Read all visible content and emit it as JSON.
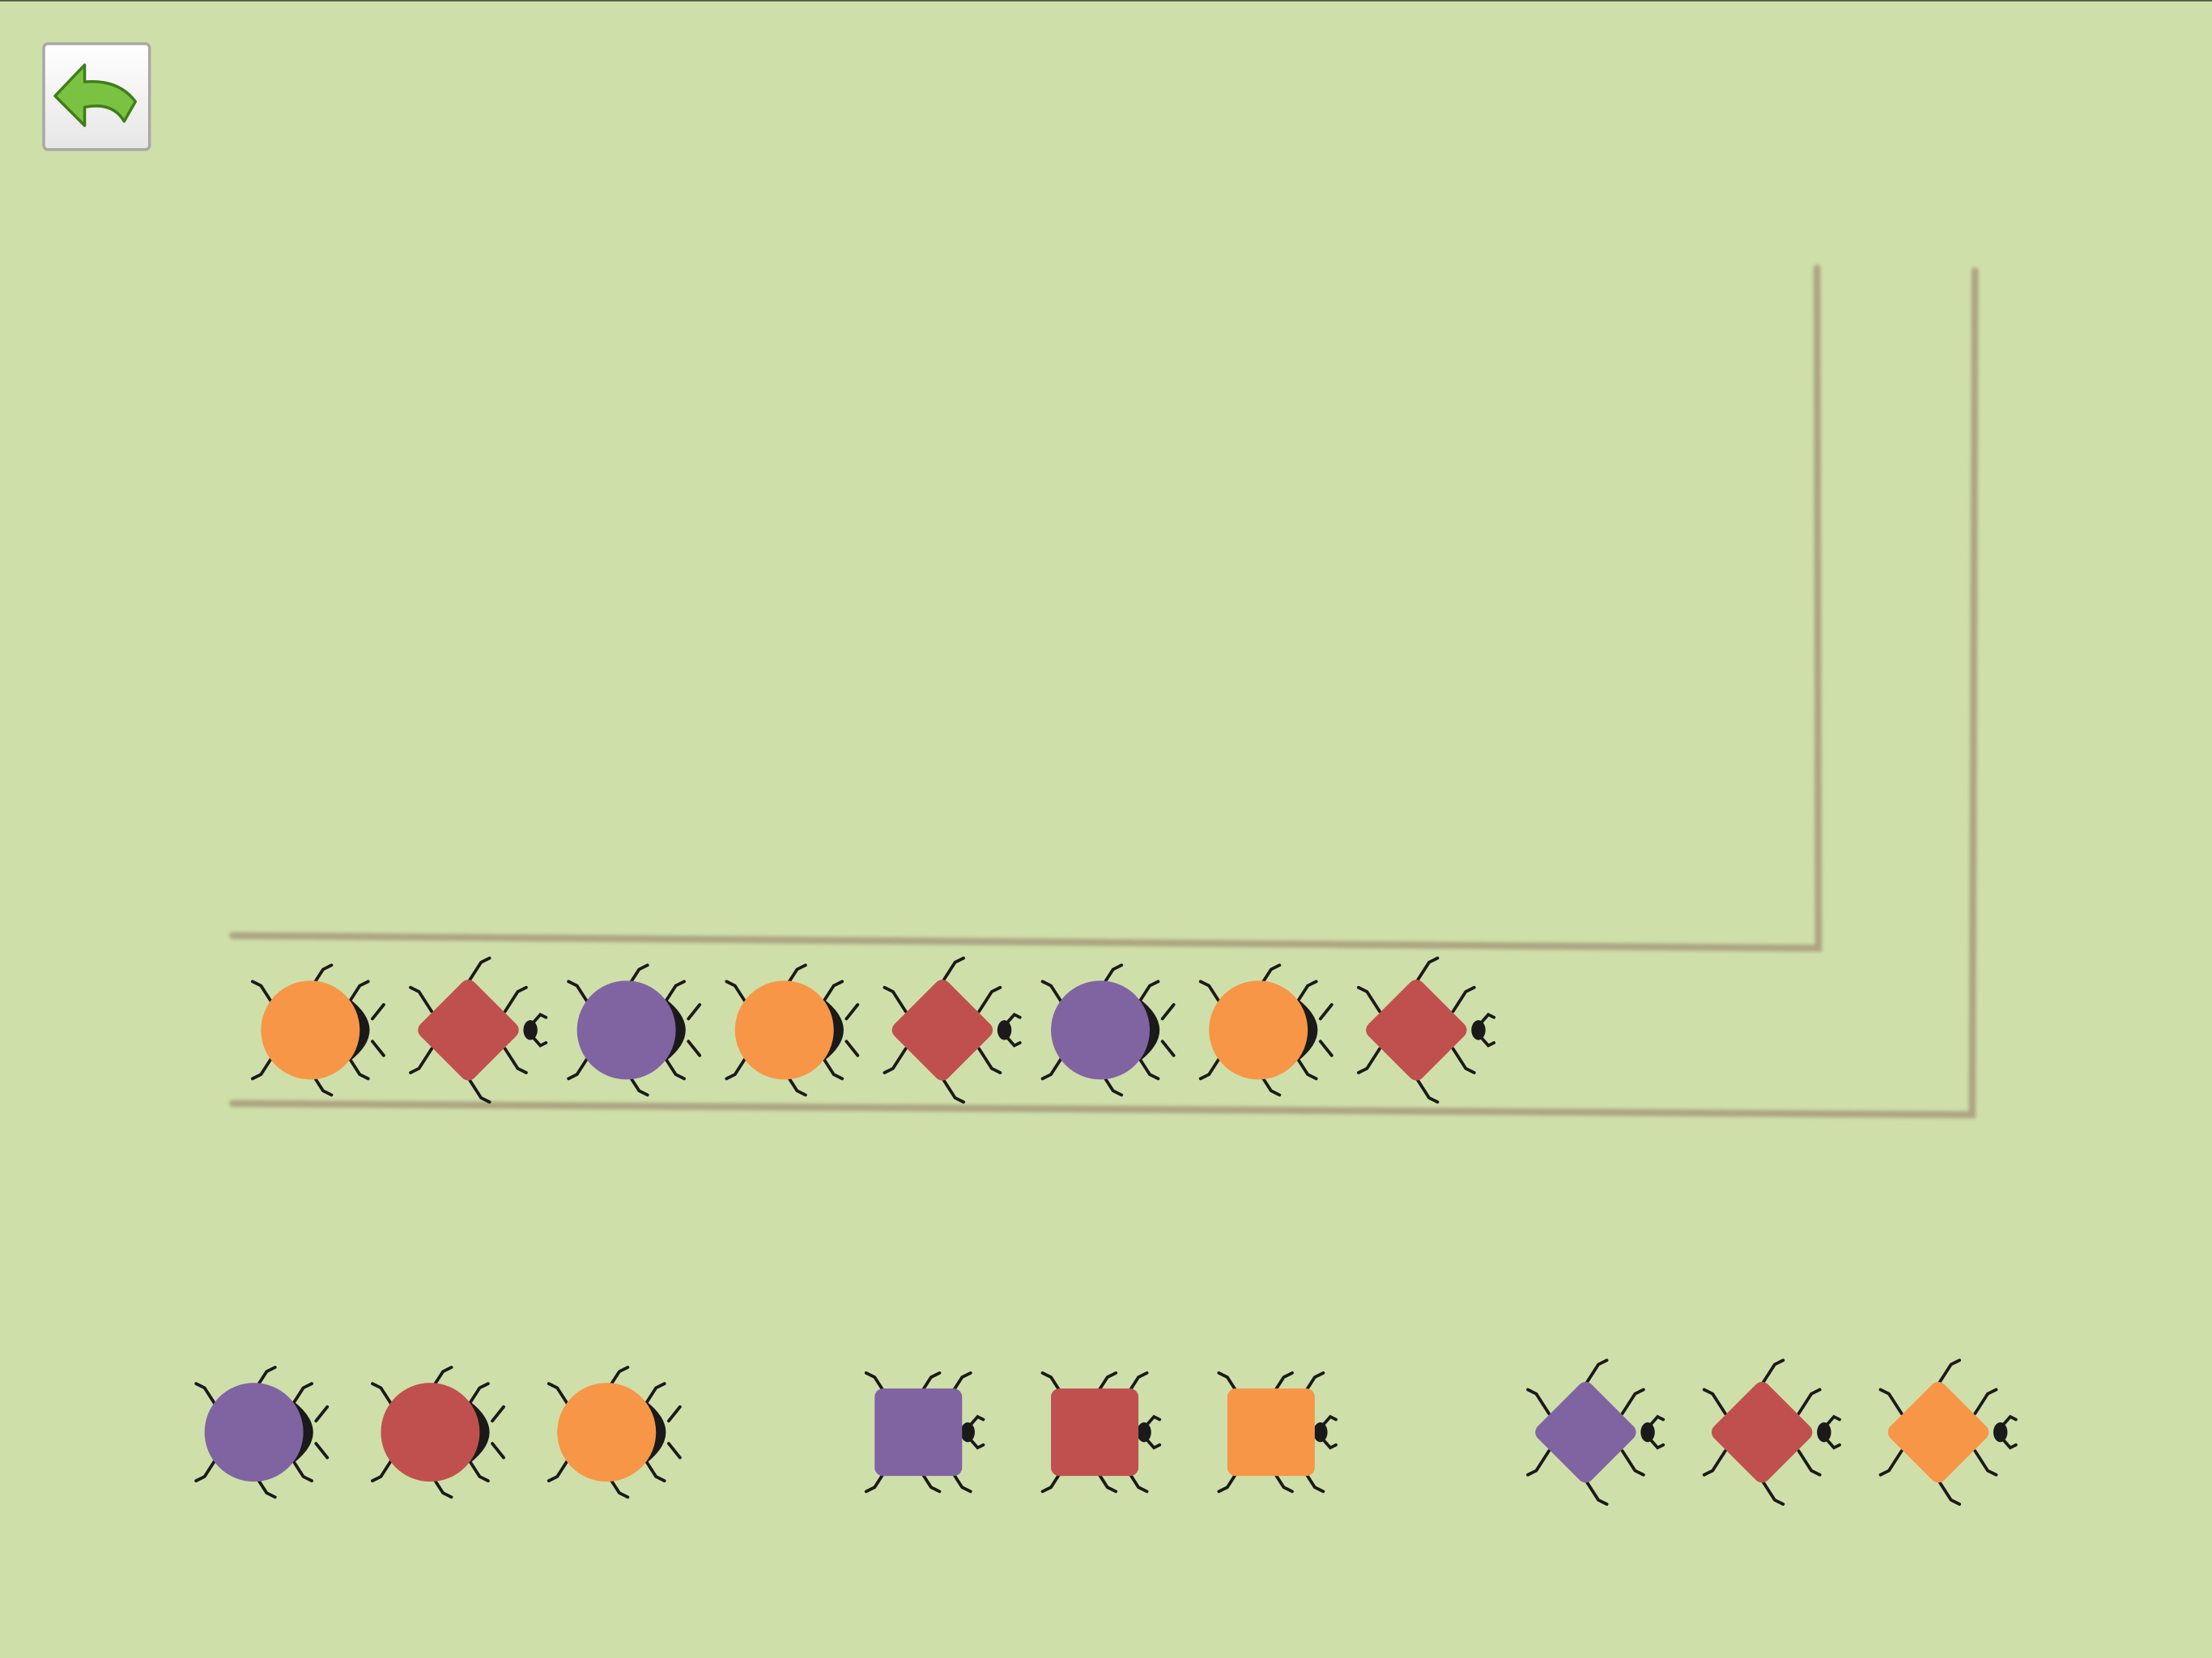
{
  "track": {
    "bugs": [
      {
        "shape": "circle",
        "color": "#f79646"
      },
      {
        "shape": "diamond",
        "color": "#c0504d"
      },
      {
        "shape": "circle",
        "color": "#8064a2"
      },
      {
        "shape": "circle",
        "color": "#f79646"
      },
      {
        "shape": "diamond",
        "color": "#c0504d"
      },
      {
        "shape": "circle",
        "color": "#8064a2"
      },
      {
        "shape": "circle",
        "color": "#f79646"
      },
      {
        "shape": "diamond",
        "color": "#c0504d"
      }
    ]
  },
  "palette": {
    "bugs": [
      {
        "shape": "circle",
        "color": "#8064a2"
      },
      {
        "shape": "circle",
        "color": "#c0504d"
      },
      {
        "shape": "circle",
        "color": "#f79646"
      },
      {
        "shape": "square",
        "color": "#8064a2"
      },
      {
        "shape": "square",
        "color": "#c0504d"
      },
      {
        "shape": "square",
        "color": "#f79646"
      },
      {
        "shape": "diamond",
        "color": "#8064a2"
      },
      {
        "shape": "diamond",
        "color": "#c0504d"
      },
      {
        "shape": "diamond",
        "color": "#f79646"
      }
    ]
  }
}
